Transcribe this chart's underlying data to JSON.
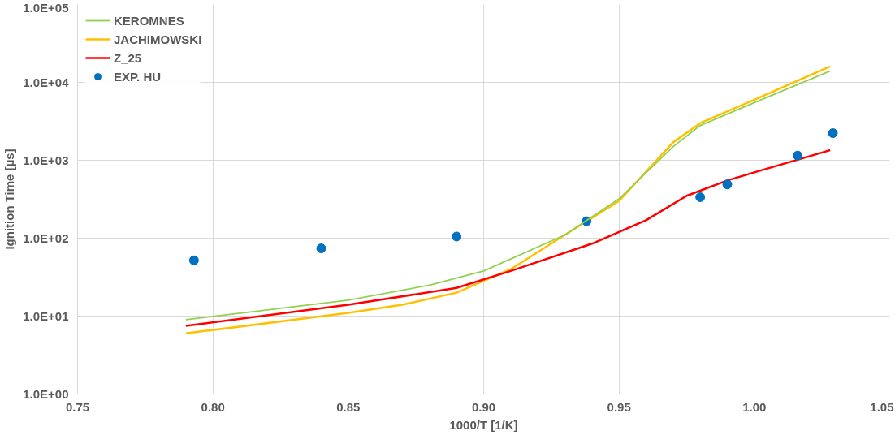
{
  "chart_data": {
    "type": "line",
    "xlabel": "1000/T [1/K]",
    "ylabel": "Ignition Time [µs]",
    "log": "y",
    "grid": true,
    "legend": "top left",
    "xlim": [
      0.75,
      1.05
    ],
    "xticks": [
      {
        "value": 0.75,
        "label": "0.75"
      },
      {
        "value": 0.8,
        "label": "0.80"
      },
      {
        "value": 0.85,
        "label": "0.85"
      },
      {
        "value": 0.9,
        "label": "0.90"
      },
      {
        "value": 0.95,
        "label": "0.95"
      },
      {
        "value": 1.0,
        "label": "1.00"
      },
      {
        "value": 1.05,
        "label": "1.05"
      }
    ],
    "ylim": [
      1,
      100000
    ],
    "yticks": [
      {
        "value": 1,
        "label": "1.0E+00"
      },
      {
        "value": 10,
        "label": "1.0E+01"
      },
      {
        "value": 100,
        "label": "1.0E+02"
      },
      {
        "value": 1000,
        "label": "1.0E+03"
      },
      {
        "value": 10000,
        "label": "1.0E+04"
      },
      {
        "value": 100000,
        "label": "1.0E+05"
      }
    ],
    "series": [
      {
        "name": "KEROMNES",
        "color": "#92d050",
        "x": [
          0.79,
          0.85,
          0.88,
          0.9,
          0.93,
          0.95,
          0.97,
          0.98,
          1.0,
          1.028
        ],
        "values": [
          9,
          16,
          25,
          38,
          110,
          320,
          1500,
          2800,
          5500,
          14000
        ]
      },
      {
        "name": "JACHIMOWSKI",
        "color": "#ffc000",
        "x": [
          0.79,
          0.85,
          0.87,
          0.89,
          0.91,
          0.93,
          0.95,
          0.97,
          0.98,
          1.0,
          1.028
        ],
        "values": [
          6,
          11,
          14,
          20,
          40,
          110,
          300,
          1700,
          3000,
          6000,
          16000
        ]
      },
      {
        "name": "Z_25",
        "color": "#ff0000",
        "x": [
          0.79,
          0.85,
          0.89,
          0.91,
          0.94,
          0.96,
          0.975,
          0.99,
          1.0,
          1.028
        ],
        "values": [
          7.5,
          14,
          23,
          38,
          85,
          170,
          350,
          550,
          700,
          1350
        ]
      },
      {
        "name": "EXP. HU",
        "color": "#0070c0",
        "type": "scatter",
        "marker": "circle",
        "x": [
          0.793,
          0.84,
          0.89,
          0.938,
          0.98,
          0.99,
          1.016,
          1.029
        ],
        "values": [
          52,
          74,
          105,
          165,
          336,
          490,
          1150,
          2230
        ]
      }
    ]
  }
}
